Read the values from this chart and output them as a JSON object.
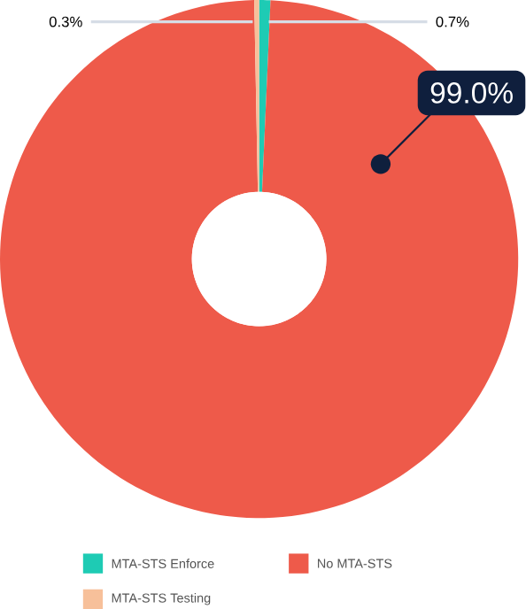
{
  "chart_data": {
    "type": "donut",
    "categories": [
      "MTA-STS Enforce",
      "No MTA-STS",
      "MTA-STS Testing"
    ],
    "values": [
      0.7,
      99.0,
      0.3
    ],
    "colors": [
      "#1ecbb4",
      "#ee5a4a",
      "#f7c09a"
    ],
    "value_labels": [
      "0.7%",
      "99.0%",
      "0.3%"
    ],
    "legend": "bottom"
  }
}
